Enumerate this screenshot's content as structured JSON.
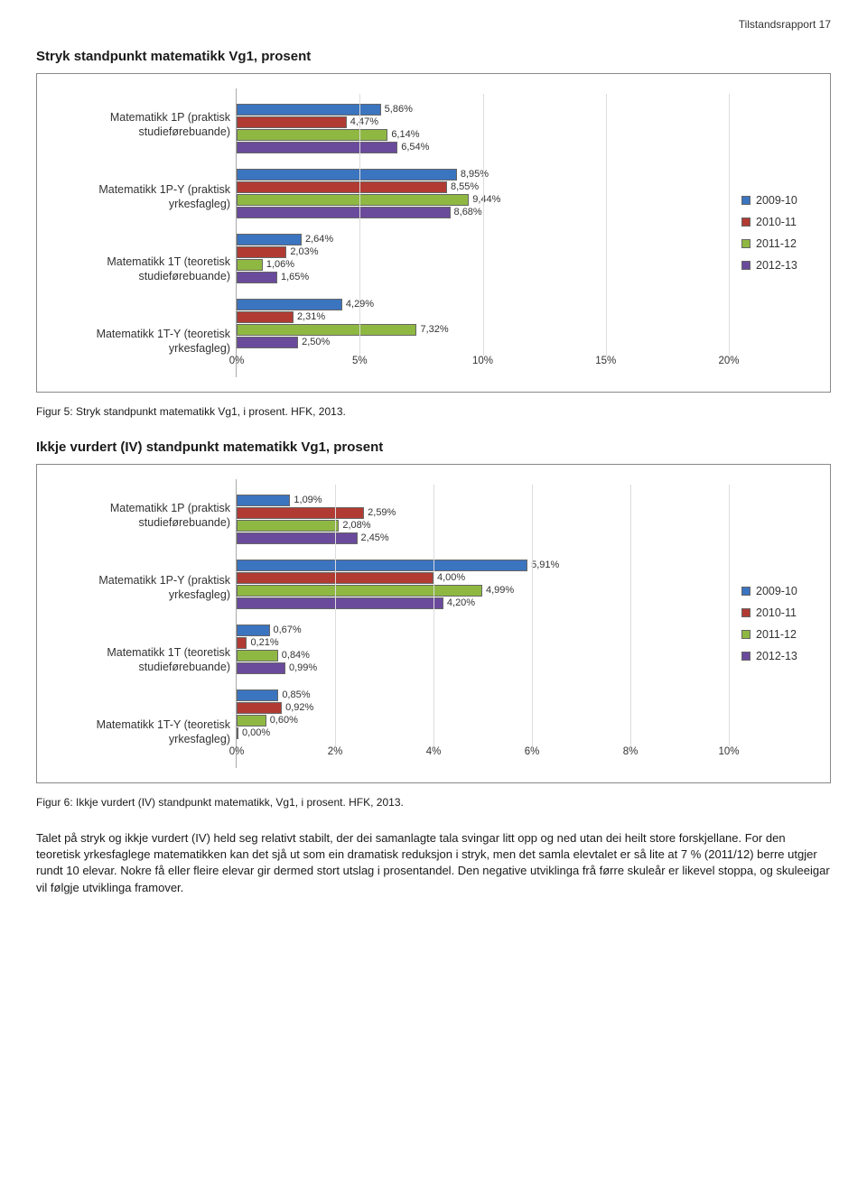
{
  "header_right": "Tilstandsrapport 17",
  "colors": {
    "2009-10": "#3b74bf",
    "2010-11": "#b13b33",
    "2011-12": "#8fb843",
    "2012-13": "#6a4b9b",
    "grid": "#dddddd",
    "border": "#888888",
    "text": "#1a1a1a"
  },
  "legend": [
    {
      "label": "2009-10",
      "color": "#3b74bf"
    },
    {
      "label": "2010-11",
      "color": "#b13b33"
    },
    {
      "label": "2011-12",
      "color": "#8fb843"
    },
    {
      "label": "2012-13",
      "color": "#6a4b9b"
    }
  ],
  "chart1": {
    "title": "Stryk standpunkt matematikk Vg1, prosent",
    "type": "bar-horizontal",
    "x_max": 20,
    "x_tick_step": 5,
    "x_tick_suffix": "%",
    "categories": [
      {
        "label": "Matematikk 1P (praktisk studieførebuande)",
        "values": [
          {
            "series": "2009-10",
            "value": 5.86,
            "label": "5,86%"
          },
          {
            "series": "2010-11",
            "value": 4.47,
            "label": "4,47%"
          },
          {
            "series": "2011-12",
            "value": 6.14,
            "label": "6,14%"
          },
          {
            "series": "2012-13",
            "value": 6.54,
            "label": "6,54%"
          }
        ]
      },
      {
        "label": "Matematikk 1P-Y (praktisk yrkesfagleg)",
        "values": [
          {
            "series": "2009-10",
            "value": 8.95,
            "label": "8,95%"
          },
          {
            "series": "2010-11",
            "value": 8.55,
            "label": "8,55%"
          },
          {
            "series": "2011-12",
            "value": 9.44,
            "label": "9,44%"
          },
          {
            "series": "2012-13",
            "value": 8.68,
            "label": "8,68%"
          }
        ]
      },
      {
        "label": "Matematikk 1T (teoretisk studieførebuande)",
        "values": [
          {
            "series": "2009-10",
            "value": 2.64,
            "label": "2,64%"
          },
          {
            "series": "2010-11",
            "value": 2.03,
            "label": "2,03%"
          },
          {
            "series": "2011-12",
            "value": 1.06,
            "label": "1,06%"
          },
          {
            "series": "2012-13",
            "value": 1.65,
            "label": "1,65%"
          }
        ]
      },
      {
        "label": "Matematikk 1T-Y (teoretisk yrkesfagleg)",
        "values": [
          {
            "series": "2009-10",
            "value": 4.29,
            "label": "4,29%"
          },
          {
            "series": "2010-11",
            "value": 2.31,
            "label": "2,31%"
          },
          {
            "series": "2011-12",
            "value": 7.32,
            "label": "7,32%"
          },
          {
            "series": "2012-13",
            "value": 2.5,
            "label": "2,50%"
          }
        ]
      }
    ],
    "caption": "Figur 5: Stryk standpunkt matematikk Vg1, i prosent. HFK, 2013."
  },
  "chart2": {
    "title": "Ikkje vurdert (IV) standpunkt matematikk Vg1, prosent",
    "type": "bar-horizontal",
    "x_max": 10,
    "x_tick_step": 2,
    "x_tick_suffix": "%",
    "categories": [
      {
        "label": "Matematikk 1P (praktisk studieførebuande)",
        "values": [
          {
            "series": "2009-10",
            "value": 1.09,
            "label": "1,09%"
          },
          {
            "series": "2010-11",
            "value": 2.59,
            "label": "2,59%"
          },
          {
            "series": "2011-12",
            "value": 2.08,
            "label": "2,08%"
          },
          {
            "series": "2012-13",
            "value": 2.45,
            "label": "2,45%"
          }
        ]
      },
      {
        "label": "Matematikk 1P-Y (praktisk yrkesfagleg)",
        "values": [
          {
            "series": "2009-10",
            "value": 5.91,
            "label": "5,91%"
          },
          {
            "series": "2010-11",
            "value": 4.0,
            "label": "4,00%"
          },
          {
            "series": "2011-12",
            "value": 4.99,
            "label": "4,99%"
          },
          {
            "series": "2012-13",
            "value": 4.2,
            "label": "4,20%"
          }
        ]
      },
      {
        "label": "Matematikk 1T (teoretisk studieførebuande)",
        "values": [
          {
            "series": "2009-10",
            "value": 0.67,
            "label": "0,67%"
          },
          {
            "series": "2010-11",
            "value": 0.21,
            "label": "0,21%"
          },
          {
            "series": "2011-12",
            "value": 0.84,
            "label": "0,84%"
          },
          {
            "series": "2012-13",
            "value": 0.99,
            "label": "0,99%"
          }
        ]
      },
      {
        "label": "Matematikk 1T-Y (teoretisk yrkesfagleg)",
        "values": [
          {
            "series": "2009-10",
            "value": 0.85,
            "label": "0,85%"
          },
          {
            "series": "2010-11",
            "value": 0.92,
            "label": "0,92%"
          },
          {
            "series": "2011-12",
            "value": 0.6,
            "label": "0,60%"
          },
          {
            "series": "2012-13",
            "value": 0.0,
            "label": "0,00%"
          }
        ]
      }
    ],
    "caption": "Figur 6: Ikkje vurdert (IV) standpunkt matematikk, Vg1, i prosent. HFK, 2013."
  },
  "body_text": "Talet på stryk og ikkje vurdert (IV) held seg relativt stabilt, der dei samanlagte tala svingar litt opp og ned utan dei heilt store forskjellane. For den teoretisk yrkesfaglege matematikken kan det sjå ut som ein dramatisk reduksjon i stryk, men det samla elevtalet er så lite at 7 % (2011/12) berre utgjer rundt 10 elevar. Nokre få eller fleire elevar gir dermed stort utslag i prosentandel. Den negative utviklinga frå førre skuleår er likevel stoppa, og skuleeigar vil følgje utviklinga framover."
}
